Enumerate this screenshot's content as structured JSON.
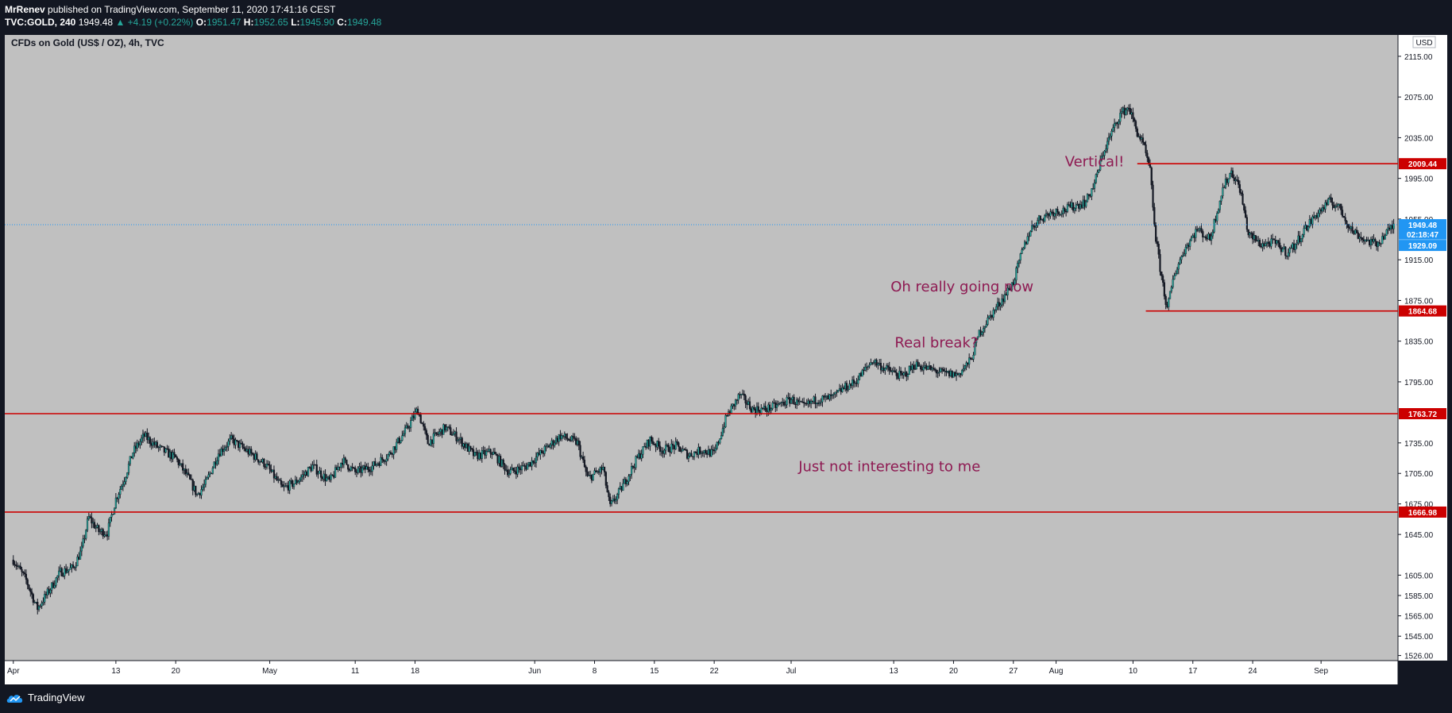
{
  "header": {
    "author": "MrRenev",
    "published_text": "published on TradingView.com, September 11, 2020 17:41:16 CEST",
    "symbol": "TVC:GOLD, 240",
    "last": "1949.48",
    "change": "▲ +4.19 (+0.22%)",
    "o_label": "O:",
    "o_value": "1951.47",
    "h_label": "H:",
    "h_value": "1952.65",
    "l_label": "L:",
    "l_value": "1945.90",
    "c_label": "C:",
    "c_value": "1949.48"
  },
  "footer": {
    "brand": "TradingView"
  },
  "colors": {
    "plot_bg": "#c0c0c0",
    "axis_bg": "#ffffff",
    "resistance": "#cc0000",
    "annotation": "#8e1a52",
    "price_line": "#2196f3",
    "candle": "#131722",
    "up_body": "#26a69a"
  },
  "chart_data": {
    "type": "candlestick",
    "title": "CFDs on Gold (US$ / OZ), 4h, TVC",
    "currency": "USD",
    "ylim": [
      1521,
      2136
    ],
    "y_ticks": [
      {
        "value": 2115,
        "label": "2115.00"
      },
      {
        "value": 2075,
        "label": "2075.00"
      },
      {
        "value": 2035,
        "label": "2035.00"
      },
      {
        "value": 1995,
        "label": "1995.00"
      },
      {
        "value": 1955,
        "label": "1955.00"
      },
      {
        "value": 1915,
        "label": "1915.00"
      },
      {
        "value": 1875,
        "label": "1875.00"
      },
      {
        "value": 1835,
        "label": "1835.00"
      },
      {
        "value": 1795,
        "label": "1795.00"
      },
      {
        "value": 1735,
        "label": "1735.00"
      },
      {
        "value": 1705,
        "label": "1705.00"
      },
      {
        "value": 1675,
        "label": "1675.00"
      },
      {
        "value": 1645,
        "label": "1645.00"
      },
      {
        "value": 1605,
        "label": "1605.00"
      },
      {
        "value": 1585,
        "label": "1585.00"
      },
      {
        "value": 1565,
        "label": "1565.00"
      },
      {
        "value": 1545,
        "label": "1545.00"
      },
      {
        "value": 1526,
        "label": "1526.00"
      }
    ],
    "x_ticks": [
      {
        "day": 0,
        "label": "Apr"
      },
      {
        "day": 12,
        "label": "13"
      },
      {
        "day": 19,
        "label": "20"
      },
      {
        "day": 30,
        "label": "May"
      },
      {
        "day": 40,
        "label": "11"
      },
      {
        "day": 47,
        "label": "18"
      },
      {
        "day": 61,
        "label": "Jun"
      },
      {
        "day": 68,
        "label": "8"
      },
      {
        "day": 75,
        "label": "15"
      },
      {
        "day": 82,
        "label": "22"
      },
      {
        "day": 91,
        "label": "Jul"
      },
      {
        "day": 103,
        "label": "13"
      },
      {
        "day": 110,
        "label": "20"
      },
      {
        "day": 117,
        "label": "27"
      },
      {
        "day": 122,
        "label": "Aug"
      },
      {
        "day": 131,
        "label": "10"
      },
      {
        "day": 138,
        "label": "17"
      },
      {
        "day": 145,
        "label": "24"
      },
      {
        "day": 153,
        "label": "Sep"
      }
    ],
    "day_range": [
      -1,
      162
    ],
    "horizontal_levels": [
      {
        "value": 1763.72,
        "label": "1763.72",
        "from_day": -1
      },
      {
        "value": 1666.98,
        "label": "1666.98",
        "from_day": -1
      },
      {
        "value": 2009.44,
        "label": "2009.44",
        "from_day": 131.5
      },
      {
        "value": 1864.68,
        "label": "1864.68",
        "from_day": 132.5
      }
    ],
    "last_price": {
      "value": 1949.48,
      "label": "1949.48"
    },
    "countdown": {
      "value": 1940.3,
      "label": "02:18:47"
    },
    "prev_close": {
      "value": 1929.09,
      "label": "1929.09"
    },
    "annotations": [
      {
        "text": "Vertical!",
        "day": 126.5,
        "value": 2007
      },
      {
        "text": "Oh really going now",
        "day": 111,
        "value": 1884
      },
      {
        "text": "Real break?",
        "day": 108,
        "value": 1829
      },
      {
        "text": "Just not interesting to me",
        "day": 102.5,
        "value": 1707
      }
    ],
    "path_points": [
      [
        0,
        1620
      ],
      [
        1.5,
        1600
      ],
      [
        2.8,
        1572
      ],
      [
        4.2,
        1590
      ],
      [
        5.5,
        1608
      ],
      [
        7,
        1612
      ],
      [
        8,
        1630
      ],
      [
        8.8,
        1662
      ],
      [
        10,
        1648
      ],
      [
        11,
        1647
      ],
      [
        12,
        1680
      ],
      [
        13,
        1700
      ],
      [
        14,
        1726
      ],
      [
        15.3,
        1742
      ],
      [
        17,
        1730
      ],
      [
        19,
        1720
      ],
      [
        20.5,
        1700
      ],
      [
        21.5,
        1684
      ],
      [
        22.5,
        1695
      ],
      [
        24,
        1725
      ],
      [
        25.5,
        1738
      ],
      [
        27.5,
        1726
      ],
      [
        29.5,
        1714
      ],
      [
        31.5,
        1690
      ],
      [
        33,
        1696
      ],
      [
        35,
        1712
      ],
      [
        37,
        1697
      ],
      [
        38.5,
        1718
      ],
      [
        40,
        1706
      ],
      [
        42,
        1712
      ],
      [
        44,
        1724
      ],
      [
        46,
        1748
      ],
      [
        47.3,
        1768
      ],
      [
        48.5,
        1735
      ],
      [
        50.5,
        1750
      ],
      [
        52,
        1740
      ],
      [
        54,
        1722
      ],
      [
        56,
        1726
      ],
      [
        58,
        1706
      ],
      [
        60,
        1712
      ],
      [
        62,
        1727
      ],
      [
        64,
        1742
      ],
      [
        66,
        1735
      ],
      [
        67.2,
        1700
      ],
      [
        69,
        1710
      ],
      [
        69.8,
        1672
      ],
      [
        71,
        1688
      ],
      [
        73,
        1720
      ],
      [
        74.5,
        1738
      ],
      [
        76,
        1728
      ],
      [
        77.5,
        1732
      ],
      [
        79,
        1723
      ],
      [
        80.5,
        1728
      ],
      [
        82,
        1724
      ],
      [
        83.5,
        1762
      ],
      [
        85,
        1782
      ],
      [
        86.5,
        1768
      ],
      [
        88,
        1768
      ],
      [
        89.5,
        1772
      ],
      [
        91,
        1778
      ],
      [
        92.5,
        1770
      ],
      [
        94,
        1778
      ],
      [
        95,
        1778
      ],
      [
        96,
        1780
      ],
      [
        97,
        1788
      ],
      [
        98.5,
        1795
      ],
      [
        100.5,
        1816
      ],
      [
        102,
        1808
      ],
      [
        104,
        1800
      ],
      [
        105.5,
        1812
      ],
      [
        107,
        1808
      ],
      [
        109,
        1803
      ],
      [
        110.5,
        1802
      ],
      [
        112,
        1816
      ],
      [
        113,
        1843
      ],
      [
        114.5,
        1862
      ],
      [
        116,
        1880
      ],
      [
        117,
        1893
      ],
      [
        118,
        1922
      ],
      [
        119,
        1945
      ],
      [
        120,
        1955
      ],
      [
        121.5,
        1962
      ],
      [
        123,
        1964
      ],
      [
        124.5,
        1969
      ],
      [
        125.5,
        1972
      ],
      [
        126.5,
        1990
      ],
      [
        127.5,
        2020
      ],
      [
        128.5,
        2040
      ],
      [
        129.5,
        2058
      ],
      [
        130.5,
        2065
      ],
      [
        131.5,
        2040
      ],
      [
        132.2,
        2028
      ],
      [
        133,
        2002
      ],
      [
        133.6,
        1940
      ],
      [
        134.2,
        1905
      ],
      [
        135,
        1866
      ],
      [
        135.8,
        1900
      ],
      [
        137,
        1925
      ],
      [
        138.5,
        1945
      ],
      [
        140,
        1935
      ],
      [
        141.5,
        1985
      ],
      [
        142.5,
        2002
      ],
      [
        143.5,
        1985
      ],
      [
        144.5,
        1940
      ],
      [
        146,
        1930
      ],
      [
        147.5,
        1932
      ],
      [
        149,
        1922
      ],
      [
        150,
        1930
      ],
      [
        151,
        1944
      ],
      [
        152.5,
        1960
      ],
      [
        154,
        1972
      ],
      [
        155,
        1968
      ],
      [
        156.5,
        1945
      ],
      [
        158,
        1935
      ],
      [
        159.5,
        1930
      ],
      [
        160.5,
        1940
      ],
      [
        161.5,
        1949
      ]
    ]
  }
}
